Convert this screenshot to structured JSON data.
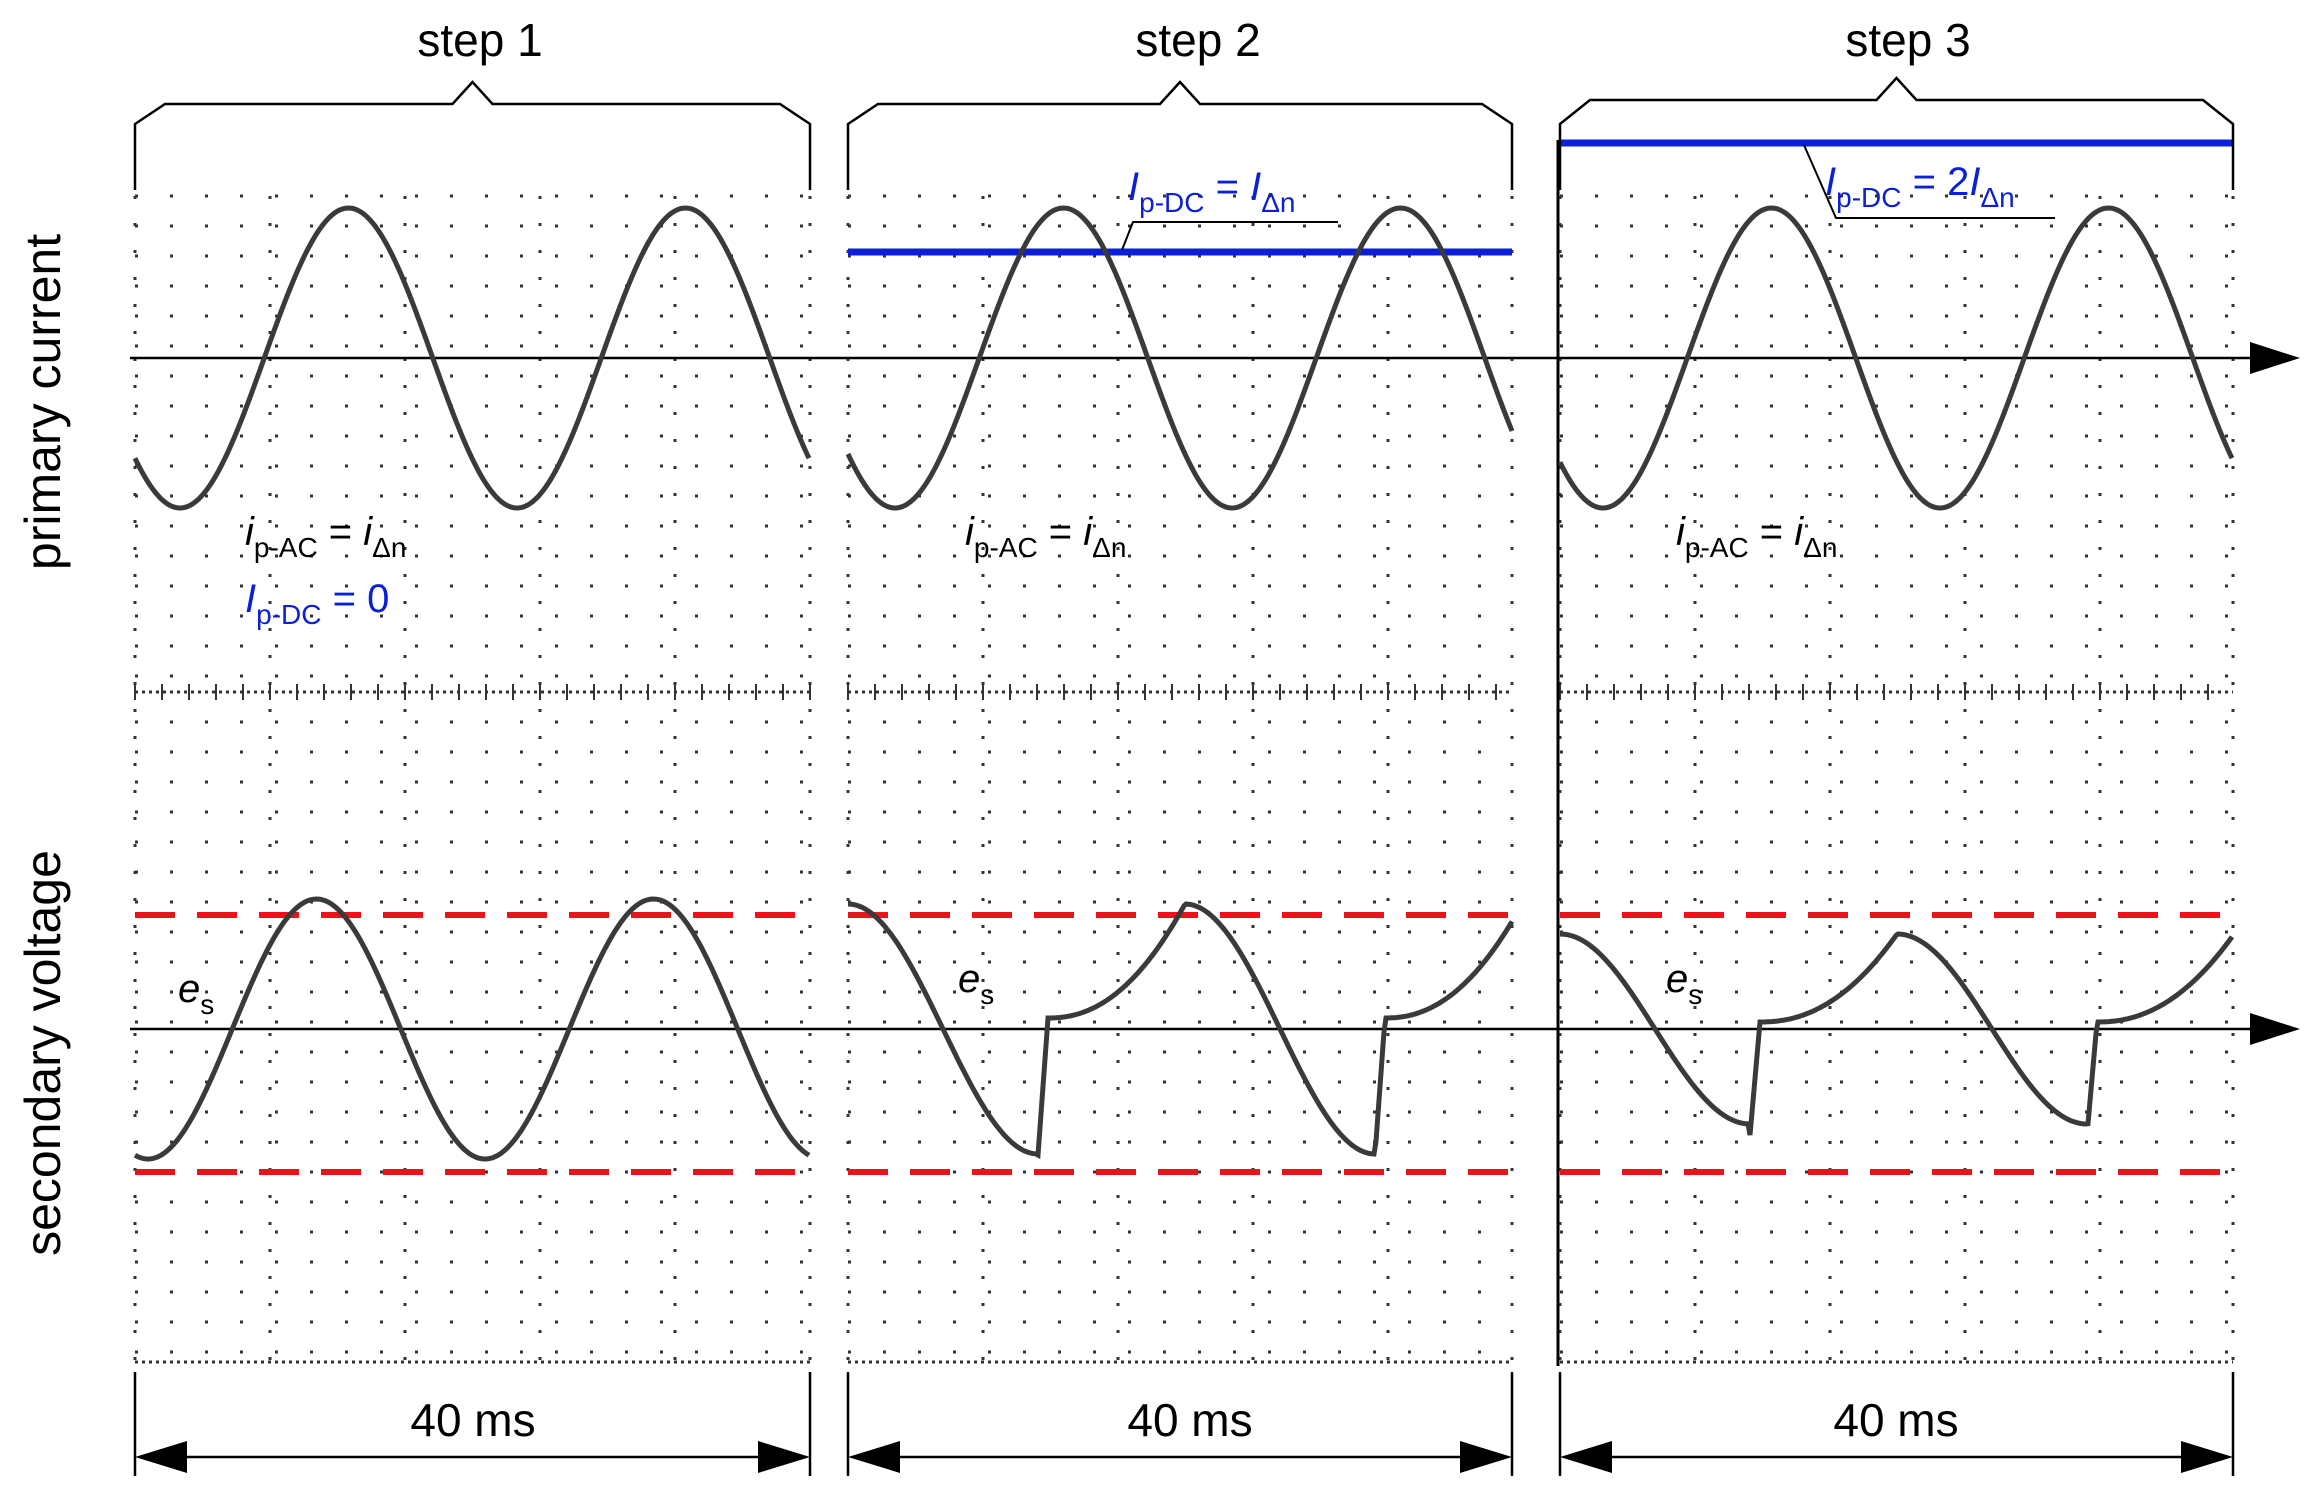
{
  "steps": [
    {
      "label": "step 1",
      "ac_sub": "p-AC",
      "ac_rhs_sub": "Δn",
      "dc_sub": "p-DC",
      "dc_value": "0",
      "es_sub": "s",
      "duration": "40 ms"
    },
    {
      "label": "step 2",
      "ac_sub": "p-AC",
      "ac_rhs_sub": "Δn",
      "dc_sub": "p-DC",
      "dc_rhs_sub": "Δn",
      "es_sub": "s",
      "duration": "40 ms"
    },
    {
      "label": "step 3",
      "ac_sub": "p-AC",
      "ac_rhs_sub": "Δn",
      "dc_sub": "p-DC",
      "dc_rhs_coef": "2",
      "dc_rhs_sub": "Δn",
      "es_sub": "s",
      "duration": "40 ms"
    }
  ],
  "symbols": {
    "i_lower": "i",
    "I_upper": "I",
    "e_lower": "e",
    "equals": " = "
  },
  "axes": {
    "primary": "primary current",
    "secondary": "secondary voltage"
  },
  "colors": {
    "trace": "#3a3a3a",
    "dc_level": "#0a1fd6",
    "threshold": "#e8141b",
    "grid": "#333333"
  }
}
